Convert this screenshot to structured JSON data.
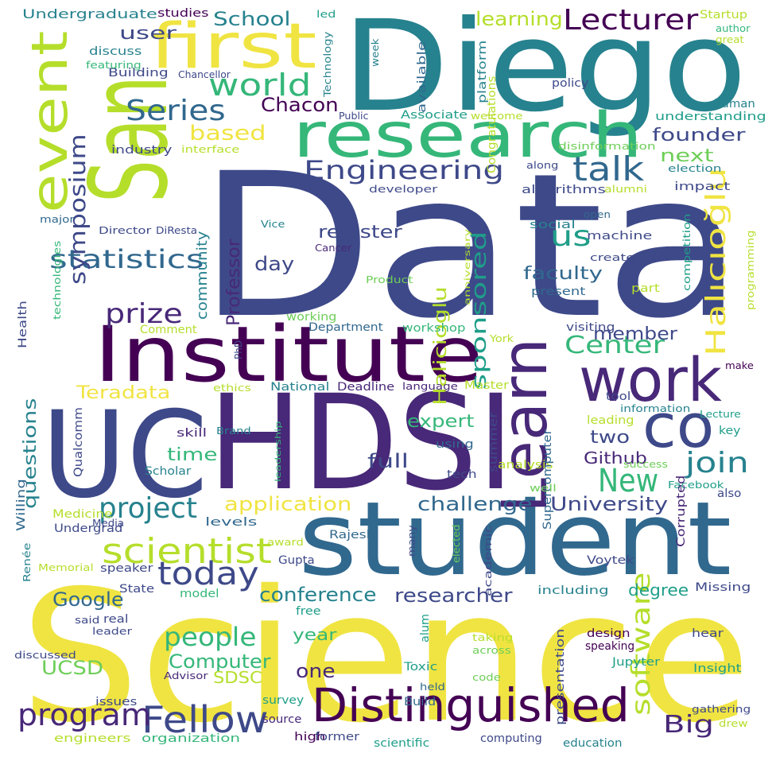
{
  "palette": {
    "yellow": "#f0e442",
    "lime": "#b5de2b",
    "lgreen": "#6ece58",
    "green": "#35b779",
    "teal": "#1f9e89",
    "blueteal": "#26828e",
    "blue": "#31688e",
    "indigo": "#3e4989",
    "violet": "#482878",
    "dark": "#440154"
  },
  "words": [
    {
      "text": "Data",
      "color": "#3e4989"
    },
    {
      "text": "Science",
      "color": "#f0e442"
    },
    {
      "text": "HDSI",
      "color": "#482878"
    },
    {
      "text": "Diego",
      "color": "#26828e"
    },
    {
      "text": "San",
      "color": "#b5de2b"
    },
    {
      "text": "UC",
      "color": "#3e4989"
    },
    {
      "text": "student",
      "color": "#31688e"
    },
    {
      "text": "Institute",
      "color": "#440154"
    },
    {
      "text": "research",
      "color": "#35b779"
    },
    {
      "text": "first",
      "color": "#f0e442"
    },
    {
      "text": "event",
      "color": "#b5de2b"
    },
    {
      "text": "Learn",
      "color": "#482878"
    },
    {
      "text": "work",
      "color": "#482878"
    },
    {
      "text": "co",
      "color": "#3e4989"
    },
    {
      "text": "Distinguished",
      "color": "#440154"
    },
    {
      "text": "Fellow",
      "color": "#3e4989"
    },
    {
      "text": "scientist",
      "color": "#b5de2b"
    },
    {
      "text": "today",
      "color": "#3e4989"
    },
    {
      "text": "program",
      "color": "#482878"
    },
    {
      "text": "project",
      "color": "#26828e"
    },
    {
      "text": "New",
      "color": "#35b779"
    },
    {
      "text": "world",
      "color": "#35b779"
    },
    {
      "text": "Series",
      "color": "#31688e"
    },
    {
      "text": "Lecturer",
      "color": "#440154"
    },
    {
      "text": "Engineering",
      "color": "#3e4989"
    },
    {
      "text": "talk",
      "color": "#31688e"
    },
    {
      "text": "us",
      "color": "#1f9e89"
    },
    {
      "text": "statistics",
      "color": "#31688e"
    },
    {
      "text": "symposium",
      "color": "#3e4989"
    },
    {
      "text": "prize",
      "color": "#482878"
    },
    {
      "text": "sponsored",
      "color": "#1f9e89"
    },
    {
      "text": "Halicioglu",
      "color": "#b5de2b"
    },
    {
      "text": "Halıcıoğlu",
      "color": "#f0e442"
    },
    {
      "text": "Center",
      "color": "#35b779"
    },
    {
      "text": "join",
      "color": "#26828e"
    },
    {
      "text": "software",
      "color": "#b5de2b"
    },
    {
      "text": "people",
      "color": "#35b779"
    },
    {
      "text": "Computer",
      "color": "#35b779"
    },
    {
      "text": "Google",
      "color": "#31688e"
    },
    {
      "text": "conference",
      "color": "#26828e"
    },
    {
      "text": "researcher",
      "color": "#3e4989"
    },
    {
      "text": "Big",
      "color": "#482878"
    },
    {
      "text": "University",
      "color": "#3e4989"
    },
    {
      "text": "challenge",
      "color": "#31688e"
    },
    {
      "text": "application",
      "color": "#f0e442"
    },
    {
      "text": "School",
      "color": "#26828e"
    },
    {
      "text": "based",
      "color": "#f0e442"
    },
    {
      "text": "Chacon",
      "color": "#440154"
    },
    {
      "text": "founder",
      "color": "#3e4989"
    },
    {
      "text": "next",
      "color": "#6ece58"
    },
    {
      "text": "learning",
      "color": "#b5de2b"
    },
    {
      "text": "user",
      "color": "#3e4989"
    },
    {
      "text": "Professor",
      "color": "#482878"
    },
    {
      "text": "community",
      "color": "#26828e"
    },
    {
      "text": "day",
      "color": "#3e4989"
    },
    {
      "text": "register",
      "color": "#3e4989"
    },
    {
      "text": "faculty",
      "color": "#31688e"
    },
    {
      "text": "member",
      "color": "#3e4989"
    },
    {
      "text": "Teradata",
      "color": "#f0e442"
    },
    {
      "text": "expert",
      "color": "#35b779"
    },
    {
      "text": "full",
      "color": "#3e4989"
    },
    {
      "text": "time",
      "color": "#35b779"
    },
    {
      "text": "two",
      "color": "#3e4989"
    },
    {
      "text": "Github",
      "color": "#482878"
    },
    {
      "text": "questions",
      "color": "#26828e"
    },
    {
      "text": "UCSD",
      "color": "#6ece58"
    },
    {
      "text": "SDSC",
      "color": "#b5de2b"
    },
    {
      "text": "one",
      "color": "#482878"
    },
    {
      "text": "year",
      "color": "#35b779"
    },
    {
      "text": "degree",
      "color": "#1f9e89"
    },
    {
      "text": "Undergraduate",
      "color": "#26828e"
    },
    {
      "text": "studies",
      "color": "#440154"
    },
    {
      "text": "led",
      "color": "#1f9e89"
    },
    {
      "text": "Startup",
      "color": "#b5de2b"
    },
    {
      "text": "author",
      "color": "#35b779"
    },
    {
      "text": "great",
      "color": "#b5de2b"
    },
    {
      "text": "Technology",
      "color": "#26828e"
    },
    {
      "text": "week",
      "color": "#26828e"
    },
    {
      "text": "available",
      "color": "#31688e"
    },
    {
      "text": "platform",
      "color": "#26828e"
    },
    {
      "text": "policy",
      "color": "#3e4989"
    },
    {
      "text": "Building",
      "color": "#3e4989"
    },
    {
      "text": "Chancellor",
      "color": "#3e4989"
    },
    {
      "text": "discuss",
      "color": "#26828e"
    },
    {
      "text": "featuring",
      "color": "#35b779"
    },
    {
      "text": "Public",
      "color": "#3e4989"
    },
    {
      "text": "Associate",
      "color": "#1f9e89"
    },
    {
      "text": "welcome",
      "color": "#b5de2b"
    },
    {
      "text": "human",
      "color": "#26828e"
    },
    {
      "text": "understanding",
      "color": "#1f9e89"
    },
    {
      "text": "Congratulations",
      "color": "#b5de2b"
    },
    {
      "text": "industry",
      "color": "#3e4989"
    },
    {
      "text": "interface",
      "color": "#b5de2b"
    },
    {
      "text": "disinformation",
      "color": "#6ece58"
    },
    {
      "text": "along",
      "color": "#3e4989"
    },
    {
      "text": "election",
      "color": "#26828e"
    },
    {
      "text": "developer",
      "color": "#3e4989"
    },
    {
      "text": "algorithms",
      "color": "#3e4989"
    },
    {
      "text": "alumni",
      "color": "#b5de2b"
    },
    {
      "text": "impact",
      "color": "#3e4989"
    },
    {
      "text": "social",
      "color": "#26828e"
    },
    {
      "text": "open",
      "color": "#31688e"
    },
    {
      "text": "machine",
      "color": "#3e4989"
    },
    {
      "text": "create",
      "color": "#3e4989"
    },
    {
      "text": "competition",
      "color": "#1f9e89"
    },
    {
      "text": "programming",
      "color": "#b5de2b"
    },
    {
      "text": "present",
      "color": "#31688e"
    },
    {
      "text": "part",
      "color": "#b5de2b"
    },
    {
      "text": "Product",
      "color": "#6ece58"
    },
    {
      "text": "anniversary",
      "color": "#b5de2b"
    },
    {
      "text": "Cancer",
      "color": "#482878"
    },
    {
      "text": "Vice",
      "color": "#26828e"
    },
    {
      "text": "Director",
      "color": "#3e4989"
    },
    {
      "text": "DiResta",
      "color": "#3e4989"
    },
    {
      "text": "major",
      "color": "#31688e"
    },
    {
      "text": "technologies",
      "color": "#35b779"
    },
    {
      "text": "Health",
      "color": "#3e4989"
    },
    {
      "text": "Comment",
      "color": "#b5de2b"
    },
    {
      "text": "working",
      "color": "#6ece58"
    },
    {
      "text": "Department",
      "color": "#31688e"
    },
    {
      "text": "workshop",
      "color": "#35b779"
    },
    {
      "text": "York",
      "color": "#b5de2b"
    },
    {
      "text": "visiting",
      "color": "#3e4989"
    },
    {
      "text": "make",
      "color": "#440154"
    },
    {
      "text": "PhD",
      "color": "#3e4989"
    },
    {
      "text": "ethics",
      "color": "#b5de2b"
    },
    {
      "text": "National",
      "color": "#26828e"
    },
    {
      "text": "Deadline",
      "color": "#482878"
    },
    {
      "text": "language",
      "color": "#482878"
    },
    {
      "text": "Master",
      "color": "#b5de2b"
    },
    {
      "text": "tool",
      "color": "#3e4989"
    },
    {
      "text": "information",
      "color": "#26828e"
    },
    {
      "text": "Lecture",
      "color": "#1f9e89"
    },
    {
      "text": "leading",
      "color": "#b5de2b"
    },
    {
      "text": "key",
      "color": "#1f9e89"
    },
    {
      "text": "skill",
      "color": "#482878"
    },
    {
      "text": "Brand",
      "color": "#26828e"
    },
    {
      "text": "leadership",
      "color": "#35b779"
    },
    {
      "text": "Qualcomm",
      "color": "#3e4989"
    },
    {
      "text": "using",
      "color": "#31688e"
    },
    {
      "text": "summer",
      "color": "#3e4989"
    },
    {
      "text": "tech",
      "color": "#3e4989"
    },
    {
      "text": "analysis",
      "color": "#b5de2b"
    },
    {
      "text": "Supercomputer",
      "color": "#31688e"
    },
    {
      "text": "success",
      "color": "#6ece58"
    },
    {
      "text": "well",
      "color": "#6ece58"
    },
    {
      "text": "Facebook",
      "color": "#1f9e89"
    },
    {
      "text": "Scholar",
      "color": "#26828e"
    },
    {
      "text": "also",
      "color": "#3e4989"
    },
    {
      "text": "Willing",
      "color": "#31688e"
    },
    {
      "text": "Medicine",
      "color": "#b5de2b"
    },
    {
      "text": "Corrupted",
      "color": "#482878"
    },
    {
      "text": "Undergrad",
      "color": "#3e4989"
    },
    {
      "text": "Media",
      "color": "#3e4989"
    },
    {
      "text": "levels",
      "color": "#31688e"
    },
    {
      "text": "Rajesh",
      "color": "#31688e"
    },
    {
      "text": "award",
      "color": "#b5de2b"
    },
    {
      "text": "Gupta",
      "color": "#3e4989"
    },
    {
      "text": "many",
      "color": "#3e4989"
    },
    {
      "text": "elected",
      "color": "#6ece58"
    },
    {
      "text": "academic",
      "color": "#3e4989"
    },
    {
      "text": "Renée",
      "color": "#26828e"
    },
    {
      "text": "Memorial",
      "color": "#b5de2b"
    },
    {
      "text": "speaker",
      "color": "#3e4989"
    },
    {
      "text": "Voytek",
      "color": "#3e4989"
    },
    {
      "text": "State",
      "color": "#3e4989"
    },
    {
      "text": "model",
      "color": "#35b779"
    },
    {
      "text": "including",
      "color": "#26828e"
    },
    {
      "text": "Missing",
      "color": "#3e4989"
    },
    {
      "text": "real",
      "color": "#3e4989"
    },
    {
      "text": "said",
      "color": "#3e4989"
    },
    {
      "text": "leader",
      "color": "#3e4989"
    },
    {
      "text": "free",
      "color": "#1f9e89"
    },
    {
      "text": "alum",
      "color": "#1f9e89"
    },
    {
      "text": "presentation",
      "color": "#3e4989"
    },
    {
      "text": "design",
      "color": "#440154"
    },
    {
      "text": "speaking",
      "color": "#440154"
    },
    {
      "text": "hear",
      "color": "#3e4989"
    },
    {
      "text": "taking",
      "color": "#b5de2b"
    },
    {
      "text": "across",
      "color": "#6ece58"
    },
    {
      "text": "Jupyter",
      "color": "#1f9e89"
    },
    {
      "text": "Insight",
      "color": "#1f9e89"
    },
    {
      "text": "discussed",
      "color": "#3e4989"
    },
    {
      "text": "Advisor",
      "color": "#482878"
    },
    {
      "text": "Toxic",
      "color": "#1f9e89"
    },
    {
      "text": "code",
      "color": "#6ece58"
    },
    {
      "text": "held",
      "color": "#31688e"
    },
    {
      "text": "Build",
      "color": "#31688e"
    },
    {
      "text": "issues",
      "color": "#3e4989"
    },
    {
      "text": "survey",
      "color": "#1f9e89"
    },
    {
      "text": "gathering",
      "color": "#3e4989"
    },
    {
      "text": "source",
      "color": "#482878"
    },
    {
      "text": "drew",
      "color": "#b5de2b"
    },
    {
      "text": "engineers",
      "color": "#b5de2b"
    },
    {
      "text": "organization",
      "color": "#35b779"
    },
    {
      "text": "high",
      "color": "#440154"
    },
    {
      "text": "former",
      "color": "#3e4989"
    },
    {
      "text": "scientific",
      "color": "#1f9e89"
    },
    {
      "text": "computing",
      "color": "#3e4989"
    },
    {
      "text": "education",
      "color": "#26828e"
    }
  ]
}
